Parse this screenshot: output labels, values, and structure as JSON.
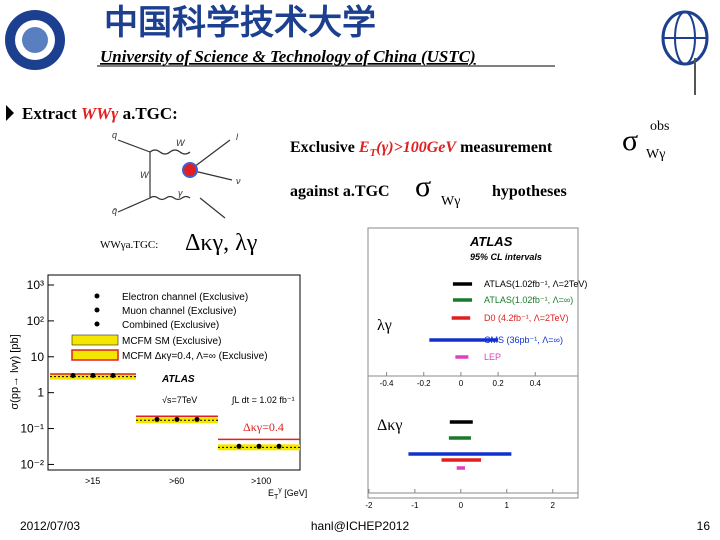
{
  "header": {
    "title_cn": "中国科学技术大学",
    "title_en": "University of Science & Technology of China (USTC)"
  },
  "bullet": {
    "prefix": "Extract ",
    "highlight": "WWγ",
    "suffix": " a.TGC:"
  },
  "measurement": {
    "line1": "Exclusive ",
    "et": "E",
    "et_sub": "T",
    "et_cut": "(γ)>100GeV",
    "line1_end": " measurement",
    "sigma": "σ",
    "sigma_sup": "obs",
    "sigma_sub": "Wγ",
    "line2": "against a.TGC",
    "line2_end": "hypotheses"
  },
  "diagram": {
    "labels": [
      "q",
      "q̄",
      "W",
      "W",
      "γ",
      "l",
      "ν"
    ]
  },
  "couplings": {
    "label": "WWγa.TGC:",
    "params": "Δκγ, λγ"
  },
  "cross_section_plot": {
    "ylabel": "σ(pp→ lνγ) [pb]",
    "ylim": [
      0.007,
      1900
    ],
    "yticks": [
      {
        "value": 1000,
        "label": "10³"
      },
      {
        "value": 100,
        "label": "10²"
      },
      10,
      1,
      {
        "value": 0.1,
        "label": "10⁻¹"
      },
      {
        "value": 0.01,
        "label": "10⁻²"
      }
    ],
    "legend": [
      "Electron channel (Exclusive)",
      "Muon channel (Exclusive)",
      "Combined (Exclusive)",
      "MCFM SM (Exclusive)",
      "MCFM Δκγ=0.4, Λ=∞ (Exclusive)"
    ],
    "experiment": "ATLAS",
    "energy": "√s=7TeV",
    "lumi": "∫L dt = 1.02 fb⁻¹",
    "bins": [
      ">15",
      ">60",
      ">100"
    ],
    "xlabel": {
      "base": "E",
      "sub": "T",
      "sup": "γ",
      "unit": " [GeV]"
    },
    "data": [
      3.0,
      0.18,
      0.032
    ],
    "sm": [
      2.8,
      0.17,
      0.03
    ],
    "atgc": [
      3.3,
      0.22,
      0.05
    ],
    "annotation": "Δκγ=0.4"
  },
  "limits_plot": {
    "title": "ATLAS",
    "subtitle": "95% CL intervals",
    "legend": [
      "ATLAS(1.02fb⁻¹, Λ=2TeV)",
      "ATLAS(1.02fb⁻¹, Λ=∞)",
      "D0 (4.2fb⁻¹, Λ=2TeV)",
      "CMS (36pb⁻¹, Λ=∞)",
      "LEP"
    ],
    "colors": [
      "#000000",
      "#1a7a2a",
      "#e02020",
      "#1030d0",
      "#e040c0"
    ],
    "lambda": {
      "label": "λγ",
      "xlim": [
        -0.5,
        0.63
      ],
      "xticks": [
        -0.4,
        -0.2,
        0,
        0.2,
        0.4
      ],
      "intervals": [
        [
          -0.043,
          0.06
        ],
        [
          -0.043,
          0.06
        ],
        [
          -0.05,
          0.05
        ],
        [
          -0.17,
          0.2
        ],
        [
          -0.03,
          0.04
        ]
      ]
    },
    "dkappa": {
      "label": "Δκγ",
      "xlim": [
        -2.02,
        2.55
      ],
      "xticks": [
        -2,
        -1,
        0,
        1,
        2
      ],
      "intervals": [
        [
          -0.24,
          0.26
        ],
        [
          -0.26,
          0.22
        ],
        [
          -0.42,
          0.44
        ],
        [
          -1.14,
          1.1
        ],
        [
          -0.09,
          0.09
        ]
      ]
    }
  },
  "footer": {
    "date": "2012/07/03",
    "author": "hanl@ICHEP2012",
    "page": "16"
  }
}
